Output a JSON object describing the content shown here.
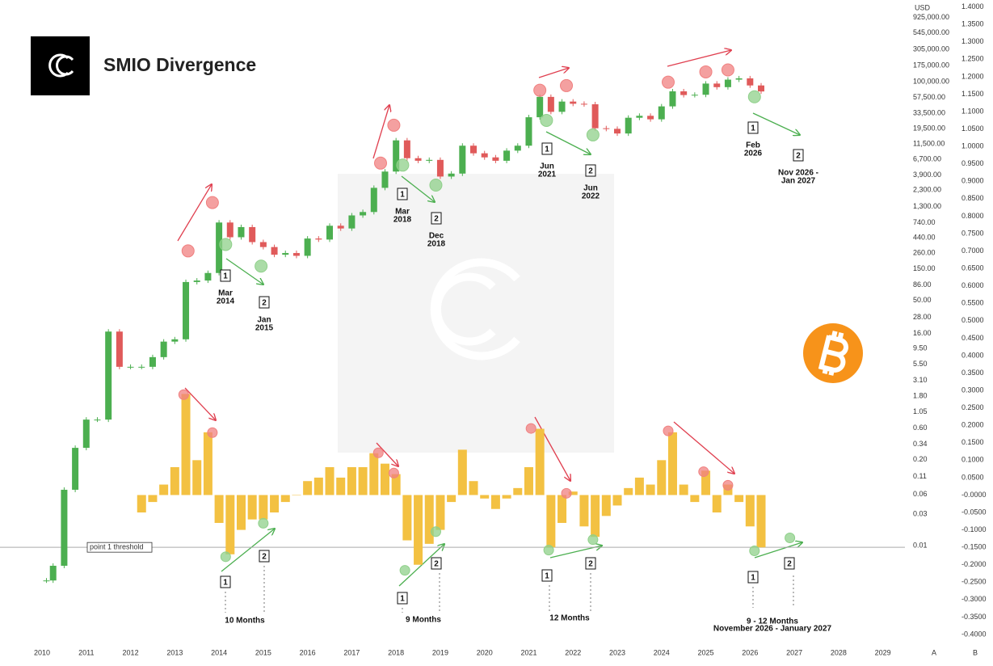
{
  "header": {
    "title": "SMIO Divergence"
  },
  "controls": [
    "A",
    "B"
  ],
  "chart_data": [
    {
      "type": "candlestick",
      "y_label": "USD",
      "log_scale": true,
      "up_color": "#4caf50",
      "down_color": "#e05a5a",
      "x": [
        2009.9,
        2010.1,
        2010.25,
        2010.5,
        2010.75,
        2011.0,
        2011.25,
        2011.5,
        2011.75,
        2012.0,
        2012.25,
        2012.5,
        2012.75,
        2013.0,
        2013.25,
        2013.5,
        2013.75,
        2014.0,
        2014.25,
        2014.5,
        2014.75,
        2015.0,
        2015.25,
        2015.5,
        2015.75,
        2016.0,
        2016.25,
        2016.5,
        2016.75,
        2017.0,
        2017.25,
        2017.5,
        2017.75,
        2018.0,
        2018.25,
        2018.5,
        2018.75,
        2019.0,
        2019.25,
        2019.5,
        2019.75,
        2020.0,
        2020.25,
        2020.5,
        2020.75,
        2021.0,
        2021.25,
        2021.5,
        2021.75,
        2022.0,
        2022.25,
        2022.5,
        2022.75,
        2023.0,
        2023.25,
        2023.5,
        2023.75,
        2024.0,
        2024.25,
        2024.5,
        2024.75,
        2025.0,
        2025.25,
        2025.5,
        2025.75,
        2026.0,
        2026.25
      ],
      "values": [
        0.003,
        0.003,
        0.005,
        0.07,
        0.3,
        0.8,
        0.8,
        17,
        5,
        5,
        5,
        7,
        12,
        13,
        95,
        100,
        130,
        750,
        450,
        640,
        380,
        320,
        245,
        260,
        236,
        430,
        415,
        670,
        610,
        960,
        1080,
        2500,
        4400,
        13000,
        7000,
        6400,
        6600,
        3700,
        4100,
        10800,
        8300,
        7200,
        6400,
        9100,
        10800,
        29000,
        58800,
        35000,
        50000,
        46300,
        45500,
        19800,
        19400,
        16500,
        28500,
        30500,
        27000,
        42300,
        71300,
        62700,
        63300,
        93400,
        82500,
        107000,
        112000,
        87500,
        71000
      ],
      "ylim": [
        0.00046,
        1700000
      ],
      "yticks": [
        {
          "value": 925000,
          "label": "925,000.00"
        },
        {
          "value": 545000,
          "label": "545,000.00"
        },
        {
          "value": 305000,
          "label": "305,000.00"
        },
        {
          "value": 175000,
          "label": "175,000.00"
        },
        {
          "value": 100000,
          "label": "100,000.00"
        },
        {
          "value": 57500,
          "label": "57,500.00"
        },
        {
          "value": 33500,
          "label": "33,500.00"
        },
        {
          "value": 19500,
          "label": "19,500.00"
        },
        {
          "value": 11500,
          "label": "11,500.00"
        },
        {
          "value": 6700,
          "label": "6,700.00"
        },
        {
          "value": 3900,
          "label": "3,900.00"
        },
        {
          "value": 2300,
          "label": "2,300.00"
        },
        {
          "value": 1300,
          "label": "1,300.00"
        },
        {
          "value": 740,
          "label": "740.00"
        },
        {
          "value": 440,
          "label": "440.00"
        },
        {
          "value": 260,
          "label": "260.00"
        },
        {
          "value": 150,
          "label": "150.00"
        },
        {
          "value": 86,
          "label": "86.00"
        },
        {
          "value": 50,
          "label": "50.00"
        },
        {
          "value": 28,
          "label": "28.00"
        },
        {
          "value": 16,
          "label": "16.00"
        },
        {
          "value": 9.5,
          "label": "9.50"
        },
        {
          "value": 5.5,
          "label": "5.50"
        },
        {
          "value": 3.1,
          "label": "3.10"
        },
        {
          "value": 1.8,
          "label": "1.80"
        },
        {
          "value": 1.05,
          "label": "1.05"
        },
        {
          "value": 0.6,
          "label": "0.60"
        },
        {
          "value": 0.34,
          "label": "0.34"
        },
        {
          "value": 0.2,
          "label": "0.20"
        },
        {
          "value": 0.11,
          "label": "0.11"
        },
        {
          "value": 0.06,
          "label": "0.06"
        },
        {
          "value": 0.03,
          "label": "0.03"
        },
        {
          "value": 0.01,
          "label": "0.01"
        }
      ],
      "xlim": [
        2009.05,
        2029.5
      ],
      "xticks": [
        2010,
        2011,
        2012,
        2013,
        2014,
        2015,
        2016,
        2017,
        2018,
        2019,
        2020,
        2021,
        2022,
        2023,
        2024,
        2025,
        2026,
        2027,
        2028,
        2029
      ],
      "markers": [
        {
          "x": 2013.3,
          "value": 280,
          "color": "#f08080"
        },
        {
          "x": 2013.85,
          "value": 1500,
          "color": "#f08080"
        },
        {
          "x": 2014.15,
          "value": 350,
          "color": "#8fd08a"
        },
        {
          "x": 2014.95,
          "value": 165,
          "color": "#8fd08a"
        },
        {
          "x": 2017.65,
          "value": 5900,
          "color": "#f08080"
        },
        {
          "x": 2017.95,
          "value": 22000,
          "color": "#f08080"
        },
        {
          "x": 2018.15,
          "value": 5500,
          "color": "#8fd08a"
        },
        {
          "x": 2018.9,
          "value": 2750,
          "color": "#8fd08a"
        },
        {
          "x": 2021.25,
          "value": 74000,
          "color": "#f08080"
        },
        {
          "x": 2021.85,
          "value": 87000,
          "color": "#f08080"
        },
        {
          "x": 2021.4,
          "value": 26000,
          "color": "#8fd08a"
        },
        {
          "x": 2022.45,
          "value": 15700,
          "color": "#8fd08a"
        },
        {
          "x": 2024.15,
          "value": 98000,
          "color": "#f08080"
        },
        {
          "x": 2025.0,
          "value": 140000,
          "color": "#f08080"
        },
        {
          "x": 2025.5,
          "value": 150000,
          "color": "#f08080"
        },
        {
          "x": 2026.1,
          "value": 59000,
          "color": "#8fd08a"
        }
      ]
    },
    {
      "type": "bar",
      "color": "#f3c142",
      "x": [
        2012.25,
        2012.5,
        2012.75,
        2013.0,
        2013.25,
        2013.5,
        2013.75,
        2014.0,
        2014.25,
        2014.5,
        2014.75,
        2015.0,
        2015.25,
        2015.5,
        2015.75,
        2016.0,
        2016.25,
        2016.5,
        2016.75,
        2017.0,
        2017.25,
        2017.5,
        2017.75,
        2018.0,
        2018.25,
        2018.5,
        2018.75,
        2019.0,
        2019.25,
        2019.5,
        2019.75,
        2020.0,
        2020.25,
        2020.5,
        2020.75,
        2021.0,
        2021.25,
        2021.5,
        2021.75,
        2022.0,
        2022.25,
        2022.5,
        2022.75,
        2023.0,
        2023.25,
        2023.5,
        2023.75,
        2024.0,
        2024.25,
        2024.5,
        2024.75,
        2025.0,
        2025.25,
        2025.5,
        2025.75,
        2026.0,
        2026.25
      ],
      "values": [
        -0.05,
        -0.02,
        0.03,
        0.08,
        0.29,
        0.1,
        0.18,
        -0.08,
        -0.17,
        -0.1,
        -0.07,
        -0.07,
        -0.05,
        -0.02,
        0.0,
        0.04,
        0.05,
        0.08,
        0.05,
        0.08,
        0.08,
        0.12,
        0.09,
        0.06,
        -0.13,
        -0.2,
        -0.14,
        -0.1,
        -0.02,
        0.13,
        0.04,
        -0.01,
        -0.04,
        -0.01,
        0.02,
        0.08,
        0.19,
        -0.15,
        -0.08,
        0.01,
        -0.09,
        -0.12,
        -0.06,
        -0.03,
        0.02,
        0.05,
        0.03,
        0.1,
        0.18,
        0.03,
        -0.02,
        0.07,
        -0.05,
        0.03,
        -0.02,
        -0.09,
        -0.15
      ],
      "ylim": [
        -0.4,
        1.42
      ],
      "yticks": [
        {
          "value": 1.4,
          "label": "1.4000"
        },
        {
          "value": 1.35,
          "label": "1.3500"
        },
        {
          "value": 1.3,
          "label": "1.3000"
        },
        {
          "value": 1.25,
          "label": "1.2500"
        },
        {
          "value": 1.2,
          "label": "1.2000"
        },
        {
          "value": 1.15,
          "label": "1.1500"
        },
        {
          "value": 1.1,
          "label": "1.1000"
        },
        {
          "value": 1.05,
          "label": "1.0500"
        },
        {
          "value": 1.0,
          "label": "1.0000"
        },
        {
          "value": 0.95,
          "label": "0.9500"
        },
        {
          "value": 0.9,
          "label": "0.9000"
        },
        {
          "value": 0.85,
          "label": "0.8500"
        },
        {
          "value": 0.8,
          "label": "0.8000"
        },
        {
          "value": 0.75,
          "label": "0.7500"
        },
        {
          "value": 0.7,
          "label": "0.7000"
        },
        {
          "value": 0.65,
          "label": "0.6500"
        },
        {
          "value": 0.6,
          "label": "0.6000"
        },
        {
          "value": 0.55,
          "label": "0.5500"
        },
        {
          "value": 0.5,
          "label": "0.5000"
        },
        {
          "value": 0.45,
          "label": "0.4500"
        },
        {
          "value": 0.4,
          "label": "0.4000"
        },
        {
          "value": 0.35,
          "label": "0.3500"
        },
        {
          "value": 0.3,
          "label": "0.3000"
        },
        {
          "value": 0.25,
          "label": "0.2500"
        },
        {
          "value": 0.2,
          "label": "0.2000"
        },
        {
          "value": 0.15,
          "label": "0.1500"
        },
        {
          "value": 0.1,
          "label": "0.1000"
        },
        {
          "value": 0.05,
          "label": "0.0500"
        },
        {
          "value": 0,
          "label": "-0.0000"
        },
        {
          "value": -0.05,
          "label": "-0.0500"
        },
        {
          "value": -0.1,
          "label": "-0.1000"
        },
        {
          "value": -0.15,
          "label": "-0.1500"
        },
        {
          "value": -0.2,
          "label": "-0.2000"
        },
        {
          "value": -0.25,
          "label": "-0.2500"
        },
        {
          "value": -0.3,
          "label": "-0.3000"
        },
        {
          "value": -0.35,
          "label": "-0.3500"
        },
        {
          "value": -0.4,
          "label": "-0.4000"
        }
      ],
      "threshold": {
        "value": -0.15,
        "label": "point 1 threshold"
      },
      "markers": [
        {
          "x": 2013.2,
          "value": 0.288,
          "color": "#f08080"
        },
        {
          "x": 2013.85,
          "value": 0.179,
          "color": "#f08080"
        },
        {
          "x": 2014.15,
          "value": -0.177,
          "color": "#8fd08a"
        },
        {
          "x": 2015.0,
          "value": -0.081,
          "color": "#8fd08a"
        },
        {
          "x": 2017.6,
          "value": 0.121,
          "color": "#f08080"
        },
        {
          "x": 2017.95,
          "value": 0.063,
          "color": "#f08080"
        },
        {
          "x": 2018.2,
          "value": -0.216,
          "color": "#8fd08a"
        },
        {
          "x": 2018.9,
          "value": -0.105,
          "color": "#8fd08a"
        },
        {
          "x": 2021.05,
          "value": 0.191,
          "color": "#f08080"
        },
        {
          "x": 2021.85,
          "value": 0.005,
          "color": "#f08080"
        },
        {
          "x": 2021.45,
          "value": -0.158,
          "color": "#8fd08a"
        },
        {
          "x": 2022.45,
          "value": -0.128,
          "color": "#8fd08a"
        },
        {
          "x": 2024.15,
          "value": 0.184,
          "color": "#f08080"
        },
        {
          "x": 2024.95,
          "value": 0.067,
          "color": "#f08080"
        },
        {
          "x": 2025.5,
          "value": 0.028,
          "color": "#f08080"
        },
        {
          "x": 2026.1,
          "value": -0.16,
          "color": "#8fd08a"
        },
        {
          "x": 2026.9,
          "value": -0.123,
          "color": "#8fd08a"
        }
      ]
    }
  ],
  "annotations": {
    "price_labels": [
      {
        "box": "1",
        "lines": [
          "Mar",
          "2014"
        ]
      },
      {
        "box": "2",
        "lines": [
          "Jan",
          "2015"
        ]
      },
      {
        "box": "1",
        "lines": [
          "Mar",
          "2018"
        ]
      },
      {
        "box": "2",
        "lines": [
          "Dec",
          "2018"
        ]
      },
      {
        "box": "1",
        "lines": [
          "Jun",
          "2021"
        ]
      },
      {
        "box": "2",
        "lines": [
          "Jun",
          "2022"
        ]
      },
      {
        "box": "1",
        "lines": [
          "Feb",
          "2026"
        ]
      },
      {
        "box": "2",
        "lines": [
          "Nov 2026 -",
          "Jan 2027"
        ]
      }
    ],
    "smio_boxes": [
      "1",
      "2",
      "1",
      "2",
      "1",
      "2",
      "1",
      "2"
    ],
    "durations": [
      {
        "lines": [
          "10 Months"
        ]
      },
      {
        "lines": [
          "9 Months"
        ]
      },
      {
        "lines": [
          "12 Months"
        ]
      },
      {
        "lines": [
          "9 - 12 Months",
          "November 2026 - January 2027"
        ]
      }
    ]
  }
}
